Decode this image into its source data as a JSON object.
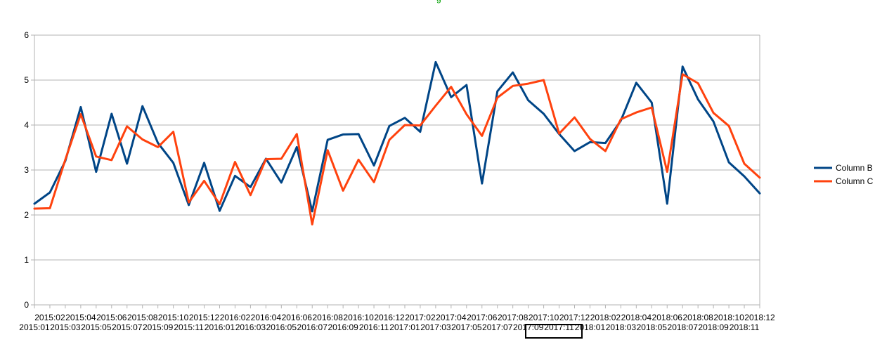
{
  "colors": {
    "column_b": "#004586",
    "column_c": "#ff420e",
    "gridline": "#b3b3b3",
    "axis": "#b3b3b3",
    "top_mark": "#00a000"
  },
  "chart_data": {
    "type": "line",
    "title": "",
    "xlabel": "",
    "ylabel": "",
    "ylim": [
      0,
      6
    ],
    "yticks": [
      0,
      1,
      2,
      3,
      4,
      5,
      6
    ],
    "grid": true,
    "legend": "right",
    "categories": [
      "2015:01",
      "2015:02",
      "2015:03",
      "2015:04",
      "2015:05",
      "2015:06",
      "2015:07",
      "2015:08",
      "2015:09",
      "2015:10",
      "2015:11",
      "2015:12",
      "2016:01",
      "2016:02",
      "2016:03",
      "2016:04",
      "2016:05",
      "2016:06",
      "2016:07",
      "2016:08",
      "2016:09",
      "2016:10",
      "2016:11",
      "2016:12",
      "2017:01",
      "2017:02",
      "2017:03",
      "2017:04",
      "2017:05",
      "2017:06",
      "2017:07",
      "2017:08",
      "2017:09",
      "2017:10",
      "2017:11",
      "2017:12",
      "2018:01",
      "2018:02",
      "2018:03",
      "2018:04",
      "2018:05",
      "2018:06",
      "2018:07",
      "2018:08",
      "2018:09",
      "2018:10",
      "2018:11",
      "2018:12"
    ],
    "series": [
      {
        "name": "Column B",
        "values": [
          2.25,
          2.5,
          3.2,
          4.4,
          2.96,
          4.25,
          3.14,
          4.42,
          3.6,
          3.16,
          2.22,
          3.16,
          2.09,
          2.87,
          2.62,
          3.25,
          2.72,
          3.51,
          2.08,
          3.67,
          3.79,
          3.8,
          3.1,
          3.98,
          4.16,
          3.85,
          5.4,
          4.62,
          4.89,
          2.7,
          4.75,
          5.17,
          4.55,
          4.25,
          3.8,
          3.42,
          3.62,
          3.6,
          4.1,
          4.94,
          4.5,
          2.25,
          5.3,
          4.57,
          4.08,
          3.17,
          2.86,
          2.48
        ]
      },
      {
        "name": "Column C",
        "values": [
          2.14,
          2.15,
          3.23,
          4.24,
          3.3,
          3.22,
          3.97,
          3.68,
          3.51,
          3.85,
          2.28,
          2.76,
          2.24,
          3.18,
          2.44,
          3.24,
          3.25,
          3.8,
          1.79,
          3.44,
          2.54,
          3.23,
          2.73,
          3.67,
          4.0,
          3.99,
          4.43,
          4.85,
          4.24,
          3.76,
          4.61,
          4.87,
          4.92,
          5.0,
          3.81,
          4.17,
          3.69,
          3.42,
          4.13,
          4.28,
          4.39,
          2.96,
          5.13,
          4.93,
          4.27,
          3.98,
          3.14,
          2.83
        ]
      }
    ]
  }
}
